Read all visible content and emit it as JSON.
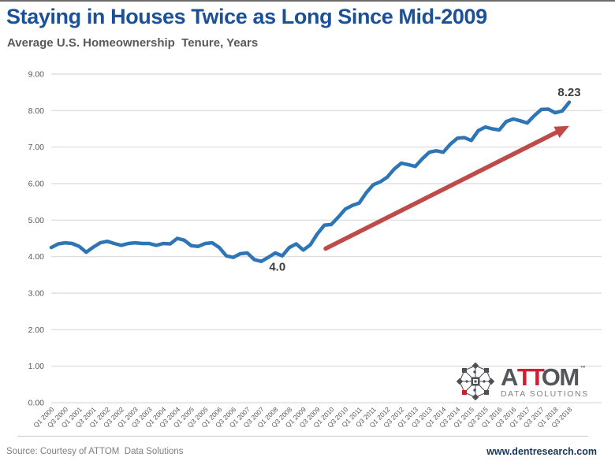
{
  "page": {
    "title": "Staying in Houses Twice as Long Since Mid-2009",
    "subtitle": "Average U.S. Homeownership  Tenure, Years"
  },
  "chart_data": {
    "type": "line",
    "title": "Staying in Houses Twice as Long Since Mid-2009",
    "subtitle": "Average U.S. Homeownership Tenure, Years",
    "x_frequency": "quarterly",
    "x_range": [
      "Q1 2000",
      "Q3 2018"
    ],
    "x_tick_labels": [
      "Q1 2000",
      "Q3 2000",
      "Q1 2001",
      "Q3 2001",
      "Q1 2002",
      "Q3 2002",
      "Q1 2003",
      "Q3 2003",
      "Q1 2004",
      "Q3 2004",
      "Q1 2005",
      "Q3 2005",
      "Q1 2006",
      "Q3 2006",
      "Q1 2007",
      "Q3 2007",
      "Q1 2008",
      "Q3 2008",
      "Q1 2009",
      "Q3 2009",
      "Q1 2010",
      "Q3 2010",
      "Q1 2011",
      "Q3 2011",
      "Q1 2012",
      "Q3 2012",
      "Q1 2013",
      "Q3 2013",
      "Q1 2014",
      "Q3 2014",
      "Q1 2015",
      "Q3 2015",
      "Q1 2016",
      "Q3 2016",
      "Q1 2017",
      "Q3 2017",
      "Q1 2018",
      "Q3 2018"
    ],
    "values": [
      4.25,
      4.35,
      4.38,
      4.36,
      4.28,
      4.12,
      4.26,
      4.38,
      4.42,
      4.36,
      4.31,
      4.36,
      4.38,
      4.36,
      4.36,
      4.31,
      4.36,
      4.35,
      4.5,
      4.45,
      4.3,
      4.28,
      4.36,
      4.38,
      4.25,
      4.02,
      3.98,
      4.08,
      4.1,
      3.92,
      3.87,
      3.98,
      4.1,
      4.02,
      4.25,
      4.35,
      4.18,
      4.32,
      4.62,
      4.86,
      4.88,
      5.08,
      5.3,
      5.4,
      5.47,
      5.75,
      5.97,
      6.05,
      6.18,
      6.4,
      6.56,
      6.52,
      6.47,
      6.68,
      6.86,
      6.9,
      6.86,
      7.08,
      7.24,
      7.26,
      7.18,
      7.45,
      7.55,
      7.5,
      7.47,
      7.7,
      7.77,
      7.72,
      7.66,
      7.86,
      8.03,
      8.04,
      7.94,
      7.99,
      8.23
    ],
    "ylim": [
      0,
      9
    ],
    "y_ticks": [
      0,
      1,
      2,
      3,
      4,
      5,
      6,
      7,
      8,
      9
    ],
    "y_tick_format_decimals": 2,
    "grid": "horizontal",
    "legend": "none",
    "line_color": "#2E75B6",
    "annotations": [
      {
        "text": "4.0",
        "x_index": 32.3,
        "y_value": 3.72
      },
      {
        "text": "8.23",
        "x_index": 74.0,
        "y_value": 8.5
      }
    ],
    "trend_arrow": {
      "color": "#BE4B48",
      "from": {
        "x_index": 39.2,
        "y_value": 4.22
      },
      "to": {
        "x_index": 74.0,
        "y_value": 7.58
      }
    }
  },
  "logo": {
    "brand_a": "A",
    "brand_tt": "TT",
    "brand_om": "OM",
    "trademark": "™",
    "tagline": "DATA SOLUTIONS"
  },
  "footer": {
    "source": "Source: Courtesy of ATTOM  Data Solutions",
    "website": "www.dentresearch.com"
  },
  "colors": {
    "title": "#1C5097",
    "subtitle": "#595959",
    "line": "#2E75B6",
    "arrow": "#BE4B48",
    "grid": "#D9D9D9",
    "axis_text": "#595959",
    "annotation": "#3D3D3D",
    "website": "#17365D",
    "source": "#7F7F7F",
    "logo_dark": "#55565A",
    "logo_red": "#CE2030",
    "logo_gray": "#808285"
  }
}
